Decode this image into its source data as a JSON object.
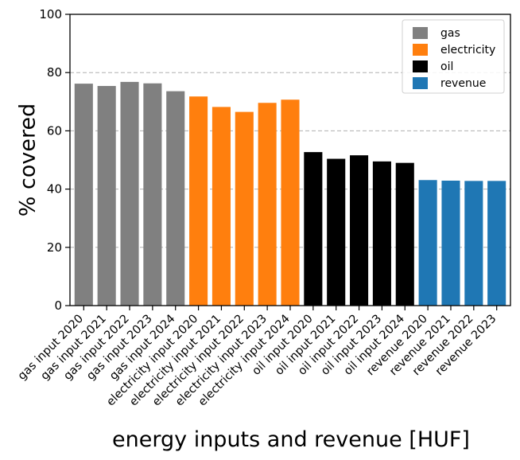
{
  "chart_data": {
    "type": "bar",
    "title": "",
    "xlabel": "energy inputs and revenue [HUF]",
    "ylabel": "% covered",
    "ylim": [
      0,
      100
    ],
    "yticks": [
      0,
      20,
      40,
      60,
      80,
      100
    ],
    "grid": "y-dashed",
    "legend_position": "top-right",
    "categories": [
      "gas input 2020",
      "gas input 2021",
      "gas input 2022",
      "gas input 2023",
      "gas input 2024",
      "electricity input 2020",
      "electricity input 2021",
      "electricity input 2022",
      "electricity input 2023",
      "electricity input 2024",
      "oil input 2020",
      "oil input 2021",
      "oil input 2022",
      "oil input 2023",
      "oil input 2024",
      "revenue 2020",
      "revenue 2021",
      "revenue 2022",
      "revenue 2023"
    ],
    "values": [
      76.2,
      75.4,
      76.8,
      76.3,
      73.6,
      71.8,
      68.2,
      66.5,
      69.6,
      70.7,
      52.7,
      50.4,
      51.6,
      49.5,
      49.0,
      43.1,
      42.9,
      42.8,
      42.8
    ],
    "groups": [
      "gas",
      "gas",
      "gas",
      "gas",
      "gas",
      "electricity",
      "electricity",
      "electricity",
      "electricity",
      "electricity",
      "oil",
      "oil",
      "oil",
      "oil",
      "oil",
      "revenue",
      "revenue",
      "revenue",
      "revenue"
    ],
    "legend": [
      {
        "key": "gas",
        "label": "gas",
        "color": "#808080"
      },
      {
        "key": "electricity",
        "label": "electricity",
        "color": "#ff7f0e"
      },
      {
        "key": "oil",
        "label": "oil",
        "color": "#000000"
      },
      {
        "key": "revenue",
        "label": "revenue",
        "color": "#1f77b4"
      }
    ]
  }
}
